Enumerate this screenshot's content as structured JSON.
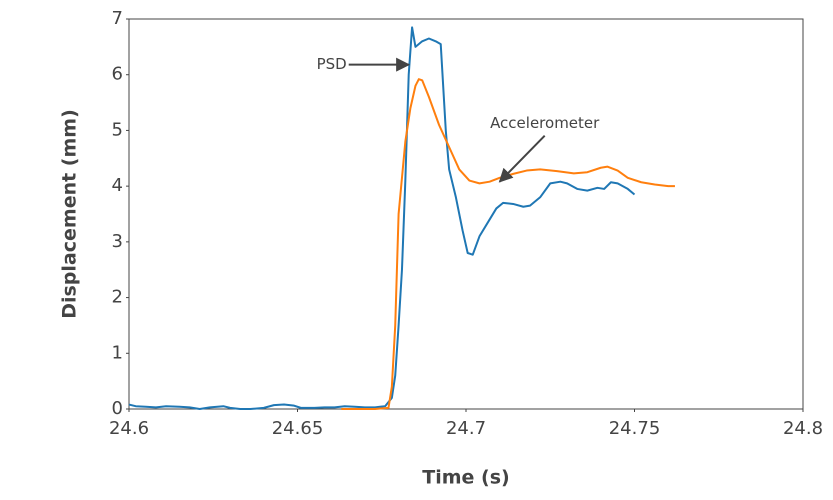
{
  "chart_data": {
    "type": "line",
    "xlabel": "Time (s)",
    "ylabel": "Displacement (mm)",
    "xlim": [
      24.6,
      24.8
    ],
    "xticks": [
      24.6,
      24.65,
      24.7,
      24.75,
      24.8
    ],
    "ylim": [
      0,
      7
    ],
    "yticks": [
      0,
      1,
      2,
      3,
      4,
      5,
      6,
      7
    ],
    "series": [
      {
        "name": "PSD",
        "color": "#1f77b4",
        "x": [
          24.6,
          24.602,
          24.605,
          24.608,
          24.611,
          24.615,
          24.618,
          24.621,
          24.624,
          24.628,
          24.63,
          24.633,
          24.636,
          24.64,
          24.643,
          24.646,
          24.649,
          24.651,
          24.655,
          24.658,
          24.661,
          24.664,
          24.667,
          24.67,
          24.673,
          24.676,
          24.678,
          24.679,
          24.68,
          24.681,
          24.682,
          24.683,
          24.684,
          24.685,
          24.687,
          24.689,
          24.691,
          24.6925,
          24.694,
          24.695,
          24.697,
          24.699,
          24.7005,
          24.702,
          24.704,
          24.707,
          24.709,
          24.711,
          24.714,
          24.717,
          24.719,
          24.722,
          24.725,
          24.728,
          24.73,
          24.733,
          24.736,
          24.739,
          24.741,
          24.743,
          24.745,
          24.748,
          24.75
        ],
        "values": [
          0.08,
          0.05,
          0.04,
          0.03,
          0.05,
          0.04,
          0.03,
          0.0,
          0.03,
          0.05,
          0.02,
          0.0,
          0.0,
          0.02,
          0.07,
          0.08,
          0.06,
          0.02,
          0.02,
          0.03,
          0.03,
          0.05,
          0.04,
          0.03,
          0.03,
          0.05,
          0.2,
          0.6,
          1.5,
          2.5,
          4.1,
          6.0,
          6.85,
          6.5,
          6.6,
          6.65,
          6.6,
          6.55,
          5.0,
          4.3,
          3.8,
          3.2,
          2.8,
          2.77,
          3.1,
          3.4,
          3.6,
          3.7,
          3.68,
          3.63,
          3.65,
          3.8,
          4.05,
          4.08,
          4.05,
          3.95,
          3.92,
          3.97,
          3.95,
          4.07,
          4.05,
          3.95,
          3.85
        ]
      },
      {
        "name": "Accelerometer",
        "color": "#ff7f0e",
        "x": [
          24.663,
          24.668,
          24.673,
          24.677,
          24.678,
          24.679,
          24.68,
          24.682,
          24.6835,
          24.685,
          24.686,
          24.687,
          24.689,
          24.692,
          24.695,
          24.698,
          24.701,
          24.704,
          24.707,
          24.71,
          24.714,
          24.718,
          24.722,
          24.727,
          24.732,
          24.736,
          24.74,
          24.742,
          24.745,
          24.748,
          24.752,
          24.756,
          24.76,
          24.762
        ],
        "values": [
          0.0,
          0.0,
          0.0,
          0.02,
          0.4,
          1.5,
          3.5,
          4.8,
          5.4,
          5.8,
          5.92,
          5.9,
          5.6,
          5.1,
          4.7,
          4.3,
          4.1,
          4.05,
          4.08,
          4.15,
          4.22,
          4.28,
          4.3,
          4.27,
          4.23,
          4.25,
          4.33,
          4.35,
          4.28,
          4.15,
          4.07,
          4.03,
          4.0,
          4.0
        ]
      }
    ],
    "annotations": [
      {
        "text": "PSD",
        "x": 24.683,
        "y": 6.18
      },
      {
        "text": "Accelerometer",
        "x": 24.71,
        "y": 4.08
      }
    ]
  }
}
